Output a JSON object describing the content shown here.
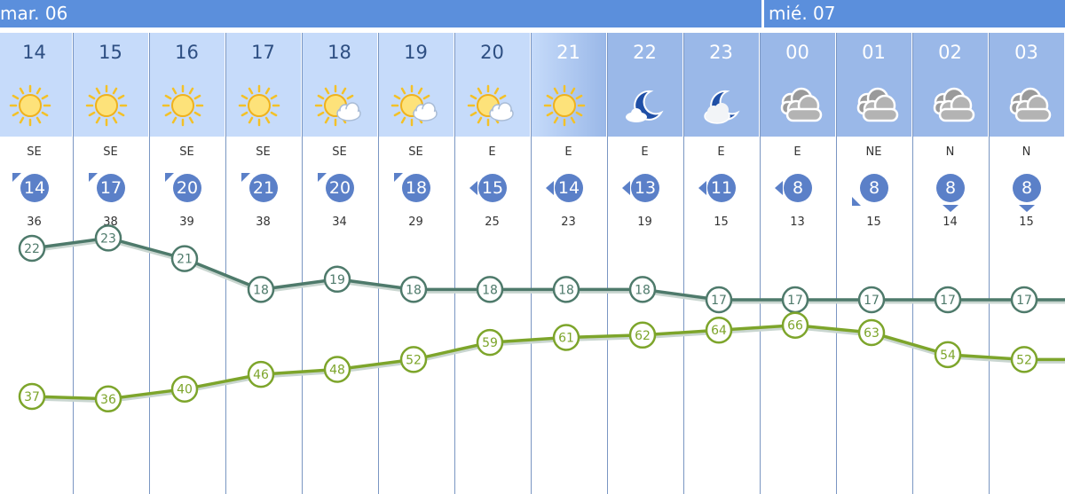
{
  "colors": {
    "day_bar": "#5b8fdc",
    "day_header_bg": "#c6dbfa",
    "night_header_bg": "#9ab8e8",
    "hour_text_day": "#2e4f82",
    "hour_text_night": "#ffffff",
    "wind_circle": "#5b80c8",
    "temperature_line": "#4e7a6b",
    "humidity_line": "#7da52b",
    "gridline": "#7a96c2"
  },
  "days": [
    {
      "label": "mar. 06"
    },
    {
      "label": "mié. 07"
    }
  ],
  "hours": [
    {
      "hour": "14",
      "icon": "sun-icon",
      "night": false,
      "wind_dir": "SE",
      "wind_speed": "14",
      "arrow": "nw",
      "gust": "36"
    },
    {
      "hour": "15",
      "icon": "sun-icon",
      "night": false,
      "wind_dir": "SE",
      "wind_speed": "17",
      "arrow": "nw",
      "gust": "38"
    },
    {
      "hour": "16",
      "icon": "sun-icon",
      "night": false,
      "wind_dir": "SE",
      "wind_speed": "20",
      "arrow": "nw",
      "gust": "39"
    },
    {
      "hour": "17",
      "icon": "sun-icon",
      "night": false,
      "wind_dir": "SE",
      "wind_speed": "21",
      "arrow": "nw",
      "gust": "38"
    },
    {
      "hour": "18",
      "icon": "sun-cloud-icon",
      "night": false,
      "wind_dir": "SE",
      "wind_speed": "20",
      "arrow": "nw",
      "gust": "34"
    },
    {
      "hour": "19",
      "icon": "sun-cloud-icon",
      "night": false,
      "wind_dir": "SE",
      "wind_speed": "18",
      "arrow": "nw",
      "gust": "29"
    },
    {
      "hour": "20",
      "icon": "sun-cloud-icon",
      "night": false,
      "wind_dir": "E",
      "wind_speed": "15",
      "arrow": "w",
      "gust": "25"
    },
    {
      "hour": "21",
      "icon": "sun-icon",
      "night": false,
      "dusk": true,
      "wind_dir": "E",
      "wind_speed": "14",
      "arrow": "w",
      "gust": "23"
    },
    {
      "hour": "22",
      "icon": "moon-icon",
      "night": true,
      "wind_dir": "E",
      "wind_speed": "13",
      "arrow": "w",
      "gust": "19"
    },
    {
      "hour": "23",
      "icon": "moon-cloud-icon",
      "night": true,
      "wind_dir": "E",
      "wind_speed": "11",
      "arrow": "w",
      "gust": "15"
    },
    {
      "hour": "00",
      "icon": "cloud-icon",
      "night": true,
      "wind_dir": "E",
      "wind_speed": "8",
      "arrow": "w",
      "gust": "13"
    },
    {
      "hour": "01",
      "icon": "cloud-icon",
      "night": true,
      "wind_dir": "NE",
      "wind_speed": "8",
      "arrow": "sw",
      "gust": "15"
    },
    {
      "hour": "02",
      "icon": "cloud-icon",
      "night": true,
      "wind_dir": "N",
      "wind_speed": "8",
      "arrow": "s",
      "gust": "14"
    },
    {
      "hour": "03",
      "icon": "cloud-icon",
      "night": true,
      "wind_dir": "N",
      "wind_speed": "8",
      "arrow": "s",
      "gust": "15"
    }
  ],
  "chart_data": {
    "type": "line",
    "categories": [
      "14",
      "15",
      "16",
      "17",
      "18",
      "19",
      "20",
      "21",
      "22",
      "23",
      "00",
      "01",
      "02",
      "03"
    ],
    "series": [
      {
        "values": [
          22,
          23,
          21,
          18,
          19,
          18,
          18,
          18,
          18,
          17,
          17,
          17,
          17,
          17
        ],
        "color": "#4e7a6b"
      },
      {
        "values": [
          37,
          36,
          40,
          46,
          48,
          52,
          59,
          61,
          62,
          64,
          66,
          63,
          54,
          52
        ],
        "color": "#7da52b"
      }
    ],
    "grid": "vertical lines at each hour",
    "legend": "none"
  }
}
